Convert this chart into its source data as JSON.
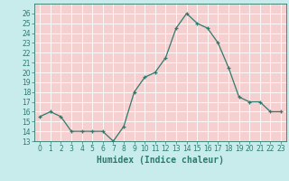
{
  "x": [
    0,
    1,
    2,
    3,
    4,
    5,
    6,
    7,
    8,
    9,
    10,
    11,
    12,
    13,
    14,
    15,
    16,
    17,
    18,
    19,
    20,
    21,
    22,
    23
  ],
  "y": [
    15.5,
    16.0,
    15.5,
    14.0,
    14.0,
    14.0,
    14.0,
    13.0,
    14.5,
    18.0,
    19.5,
    20.0,
    21.5,
    24.5,
    26.0,
    25.0,
    24.5,
    23.0,
    20.5,
    17.5,
    17.0,
    17.0,
    16.0,
    16.0
  ],
  "xlabel": "Humidex (Indice chaleur)",
  "line_color": "#2d7a6e",
  "marker": "+",
  "bg_color": "#c8ecec",
  "plot_bg_color": "#f5d0d0",
  "grid_color": "#ffffff",
  "ylim": [
    13,
    27
  ],
  "xlim": [
    -0.5,
    23.5
  ],
  "yticks": [
    13,
    14,
    15,
    16,
    17,
    18,
    19,
    20,
    21,
    22,
    23,
    24,
    25,
    26
  ],
  "xticks": [
    0,
    1,
    2,
    3,
    4,
    5,
    6,
    7,
    8,
    9,
    10,
    11,
    12,
    13,
    14,
    15,
    16,
    17,
    18,
    19,
    20,
    21,
    22,
    23
  ],
  "tick_fontsize": 5.5,
  "xlabel_fontsize": 7.0
}
